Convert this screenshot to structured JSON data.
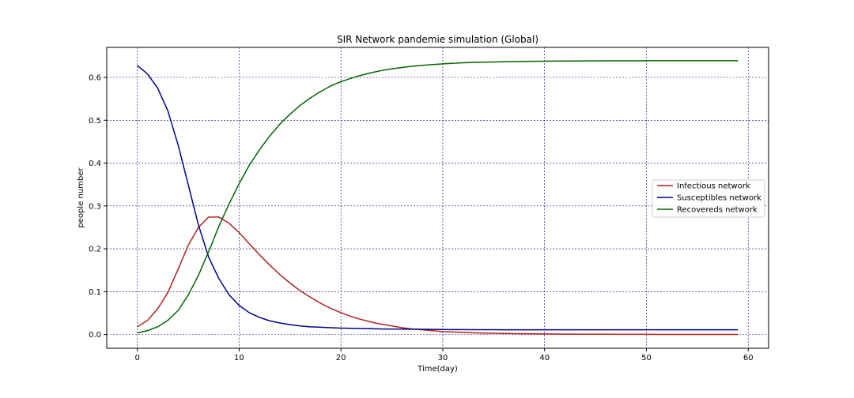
{
  "chart_data": {
    "type": "line",
    "title": "SIR Network pandemie simulation (Global)",
    "xlabel": "Time(day)",
    "ylabel": "people number",
    "xlim": [
      -3,
      62
    ],
    "ylim": [
      -0.032,
      0.67
    ],
    "xticks": [
      0,
      10,
      20,
      30,
      40,
      50,
      60
    ],
    "yticks": [
      0.0,
      0.1,
      0.2,
      0.3,
      0.4,
      0.5,
      0.6
    ],
    "grid": true,
    "grid_color": "#00008b",
    "legend_position": "center-right",
    "x": [
      0,
      1,
      2,
      3,
      4,
      5,
      6,
      7,
      8,
      9,
      10,
      11,
      12,
      13,
      14,
      15,
      16,
      17,
      18,
      19,
      20,
      21,
      22,
      23,
      24,
      25,
      26,
      27,
      28,
      29,
      30,
      31,
      32,
      33,
      34,
      35,
      36,
      37,
      38,
      39,
      40,
      41,
      42,
      43,
      44,
      45,
      46,
      47,
      48,
      49,
      50,
      51,
      52,
      53,
      54,
      55,
      56,
      57,
      58,
      59
    ],
    "series": [
      {
        "name": "Infectious network",
        "color": "#b22222",
        "values": [
          0.018,
          0.033,
          0.06,
          0.098,
          0.152,
          0.208,
          0.25,
          0.274,
          0.274,
          0.26,
          0.238,
          0.212,
          0.186,
          0.162,
          0.14,
          0.12,
          0.102,
          0.087,
          0.073,
          0.061,
          0.051,
          0.042,
          0.035,
          0.029,
          0.024,
          0.02,
          0.016,
          0.013,
          0.011,
          0.009,
          0.007,
          0.006,
          0.005,
          0.004,
          0.0035,
          0.003,
          0.0025,
          0.002,
          0.0018,
          0.0016,
          0.0014,
          0.0012,
          0.001,
          0.0009,
          0.0008,
          0.0007,
          0.0006,
          0.0005,
          0.0005,
          0.0004,
          0.0004,
          0.0003,
          0.0003,
          0.0003,
          0.0002,
          0.0002,
          0.0002,
          0.0002,
          0.0002,
          0.0002
        ]
      },
      {
        "name": "Susceptibles network",
        "color": "#00008b",
        "values": [
          0.628,
          0.608,
          0.575,
          0.522,
          0.443,
          0.35,
          0.256,
          0.181,
          0.131,
          0.093,
          0.068,
          0.051,
          0.04,
          0.032,
          0.027,
          0.023,
          0.02,
          0.018,
          0.017,
          0.016,
          0.015,
          0.0145,
          0.014,
          0.0135,
          0.013,
          0.0128,
          0.0126,
          0.0124,
          0.0122,
          0.012,
          0.0118,
          0.0116,
          0.0115,
          0.0114,
          0.0113,
          0.0112,
          0.0111,
          0.011,
          0.011,
          0.011,
          0.011,
          0.011,
          0.011,
          0.011,
          0.011,
          0.011,
          0.011,
          0.011,
          0.011,
          0.011,
          0.011,
          0.011,
          0.011,
          0.011,
          0.011,
          0.011,
          0.011,
          0.011,
          0.011,
          0.011
        ]
      },
      {
        "name": "Recovereds network",
        "color": "#006400",
        "values": [
          0.004,
          0.009,
          0.018,
          0.033,
          0.056,
          0.092,
          0.138,
          0.193,
          0.252,
          0.304,
          0.352,
          0.395,
          0.431,
          0.463,
          0.491,
          0.514,
          0.535,
          0.552,
          0.567,
          0.58,
          0.59,
          0.598,
          0.605,
          0.611,
          0.616,
          0.62,
          0.623,
          0.626,
          0.628,
          0.63,
          0.6315,
          0.633,
          0.634,
          0.635,
          0.6355,
          0.636,
          0.6365,
          0.637,
          0.6373,
          0.6376,
          0.6378,
          0.638,
          0.6382,
          0.6383,
          0.6384,
          0.6385,
          0.6386,
          0.6386,
          0.6387,
          0.6387,
          0.6388,
          0.6388,
          0.6388,
          0.6389,
          0.6389,
          0.6389,
          0.6389,
          0.639,
          0.639,
          0.639
        ]
      }
    ]
  }
}
